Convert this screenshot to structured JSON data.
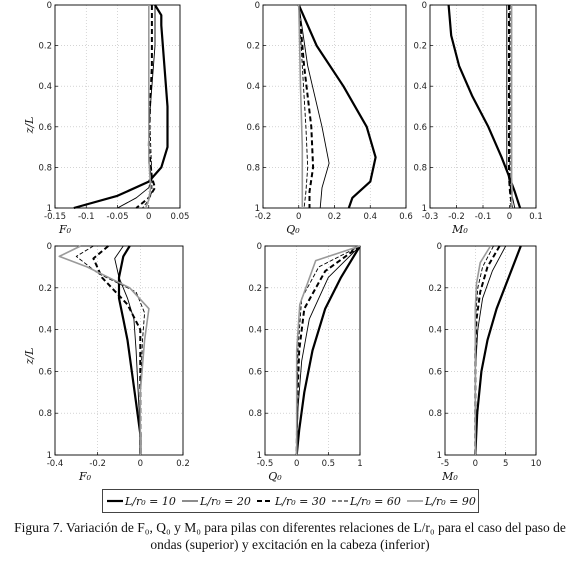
{
  "caption": {
    "line1": "Figura 7. Variación de F₀, Q₀ y M₀ para pilas con diferentes relaciones de L/r₀ para el caso del paso de",
    "line2": "ondas (superior) y excitación en la cabeza (inferior)"
  },
  "legend": [
    {
      "label": "L/r₀ = 10",
      "style": "thick-solid",
      "color": "#000000"
    },
    {
      "label": "L/r₀ = 20",
      "style": "thin-solid",
      "color": "#000000"
    },
    {
      "label": "L/r₀ = 30",
      "style": "thick-dashed",
      "color": "#000000"
    },
    {
      "label": "L/r₀ = 60",
      "style": "thin-dashed",
      "color": "#000000"
    },
    {
      "label": "L/r₀ = 90",
      "style": "gray-solid",
      "color": "#9a9a9a"
    }
  ],
  "chart_data": [
    {
      "id": "top-F0",
      "type": "line",
      "xlabel": "F₀",
      "ylabel": "z/L",
      "xlim": [
        -0.15,
        0.05
      ],
      "ylim": [
        0,
        1
      ],
      "xticks": [
        "-0.15",
        "-0.1",
        "-0.05",
        "0",
        "0.05"
      ],
      "yticks": [
        "0",
        "0.2",
        "0.4",
        "0.6",
        "0.8",
        "1"
      ],
      "series": [
        {
          "name": "L/r₀ = 10",
          "x": [
            0.01,
            0.02,
            0.02,
            0.025,
            0.03,
            0.03,
            0.02,
            0.0,
            -0.05,
            -0.12
          ],
          "y": [
            0,
            0.05,
            0.1,
            0.3,
            0.5,
            0.7,
            0.8,
            0.87,
            0.94,
            1.0
          ]
        },
        {
          "name": "L/r₀ = 20",
          "x": [
            0.01,
            0.01,
            0.005,
            0.0,
            0.0,
            0.005,
            0.0,
            -0.02,
            -0.05
          ],
          "y": [
            0,
            0.2,
            0.4,
            0.6,
            0.78,
            0.85,
            0.9,
            0.95,
            1.0
          ]
        },
        {
          "name": "L/r₀ = 30",
          "x": [
            0.005,
            0.005,
            0.002,
            0.0,
            0.005,
            0.01,
            0.0,
            -0.02
          ],
          "y": [
            0,
            0.3,
            0.5,
            0.7,
            0.85,
            0.9,
            0.95,
            1.0
          ]
        },
        {
          "name": "L/r₀ = 60",
          "x": [
            0.0,
            0.0,
            0.002,
            0.005,
            0.005,
            0.0,
            -0.01
          ],
          "y": [
            0,
            0.4,
            0.6,
            0.85,
            0.92,
            0.96,
            1.0
          ]
        },
        {
          "name": "L/r₀ = 90",
          "x": [
            0.0,
            0.0,
            0.0,
            0.003,
            0.0,
            -0.005
          ],
          "y": [
            0,
            0.5,
            0.75,
            0.9,
            0.96,
            1.0
          ]
        }
      ]
    },
    {
      "id": "top-Q0",
      "type": "line",
      "xlabel": "Q₀",
      "ylabel": "",
      "xlim": [
        -0.2,
        0.6
      ],
      "ylim": [
        0,
        1
      ],
      "xticks": [
        "-0.2",
        "0",
        "0.2",
        "0.4",
        "0.6"
      ],
      "yticks": [
        "0",
        "0.2",
        "0.4",
        "0.6",
        "0.8",
        "1"
      ],
      "series": [
        {
          "name": "L/r₀ = 10",
          "x": [
            0.0,
            0.1,
            0.25,
            0.38,
            0.43,
            0.4,
            0.3,
            0.28
          ],
          "y": [
            0,
            0.2,
            0.4,
            0.6,
            0.75,
            0.87,
            0.95,
            1.0
          ]
        },
        {
          "name": "L/r₀ = 20",
          "x": [
            0.0,
            0.05,
            0.13,
            0.17,
            0.13,
            0.12
          ],
          "y": [
            0,
            0.3,
            0.6,
            0.78,
            0.9,
            1.0
          ]
        },
        {
          "name": "L/r₀ = 30",
          "x": [
            0.0,
            0.03,
            0.07,
            0.08,
            0.06,
            0.06
          ],
          "y": [
            0,
            0.3,
            0.6,
            0.8,
            0.92,
            1.0
          ]
        },
        {
          "name": "L/r₀ = 60",
          "x": [
            0.0,
            0.02,
            0.04,
            0.05,
            0.04,
            0.03
          ],
          "y": [
            0,
            0.3,
            0.6,
            0.8,
            0.92,
            1.0
          ]
        },
        {
          "name": "L/r₀ = 90",
          "x": [
            0.0,
            0.01,
            0.02,
            0.02,
            0.02
          ],
          "y": [
            0,
            0.4,
            0.7,
            0.9,
            1.0
          ]
        }
      ]
    },
    {
      "id": "top-M0",
      "type": "line",
      "xlabel": "M₀",
      "ylabel": "",
      "xlim": [
        -0.3,
        0.1
      ],
      "ylim": [
        0,
        1
      ],
      "xticks": [
        "-0.3",
        "-0.2",
        "-0.1",
        "0",
        "0.1"
      ],
      "yticks": [
        "0",
        "0.2",
        "0.4",
        "0.6",
        "0.8",
        "1"
      ],
      "series": [
        {
          "name": "L/r₀ = 10",
          "x": [
            -0.23,
            -0.22,
            -0.19,
            -0.14,
            -0.08,
            -0.03,
            0.0,
            0.02,
            0.04
          ],
          "y": [
            0,
            0.15,
            0.3,
            0.45,
            0.6,
            0.75,
            0.85,
            0.92,
            1.0
          ]
        },
        {
          "name": "L/r₀ = 20",
          "x": [
            -0.01,
            -0.01,
            -0.01,
            0.0,
            0.01,
            0.02
          ],
          "y": [
            0,
            0.4,
            0.8,
            0.88,
            0.94,
            1.0
          ]
        },
        {
          "name": "L/r₀ = 30",
          "x": [
            -0.002,
            -0.002,
            -0.002,
            0.002,
            0.01
          ],
          "y": [
            0,
            0.5,
            0.85,
            0.92,
            1.0
          ]
        },
        {
          "name": "L/r₀ = 60",
          "x": [
            0.002,
            0.002,
            0.002,
            0.005,
            0.005
          ],
          "y": [
            0,
            0.5,
            0.85,
            0.92,
            1.0
          ]
        },
        {
          "name": "L/r₀ = 90",
          "x": [
            0.008,
            0.008,
            0.008,
            0.01,
            0.008
          ],
          "y": [
            0,
            0.5,
            0.85,
            0.92,
            1.0
          ]
        }
      ]
    },
    {
      "id": "bottom-F0",
      "type": "line",
      "xlabel": "F₀",
      "ylabel": "z/L",
      "xlim": [
        -0.4,
        0.2
      ],
      "ylim": [
        0,
        1
      ],
      "xticks": [
        "-0.4",
        "-0.2",
        "0",
        "0.2"
      ],
      "yticks": [
        "0",
        "0.2",
        "0.4",
        "0.6",
        "0.8",
        "1"
      ],
      "series": [
        {
          "name": "L/r₀ = 10",
          "x": [
            -0.05,
            -0.08,
            -0.1,
            -0.1,
            -0.08,
            -0.06,
            -0.04,
            -0.02,
            0.0,
            0.0
          ],
          "y": [
            0,
            0.05,
            0.15,
            0.25,
            0.35,
            0.45,
            0.6,
            0.75,
            0.9,
            1.0
          ]
        },
        {
          "name": "L/r₀ = 20",
          "x": [
            -0.08,
            -0.12,
            -0.1,
            -0.06,
            -0.03,
            -0.02,
            -0.01,
            0.0,
            0.0
          ],
          "y": [
            0,
            0.06,
            0.15,
            0.25,
            0.35,
            0.5,
            0.7,
            0.9,
            1.0
          ]
        },
        {
          "name": "L/r₀ = 30",
          "x": [
            -0.15,
            -0.22,
            -0.18,
            -0.06,
            0.0,
            0.0,
            0.0
          ],
          "y": [
            0,
            0.06,
            0.15,
            0.28,
            0.4,
            0.7,
            1.0
          ]
        },
        {
          "name": "L/r₀ = 60",
          "x": [
            -0.22,
            -0.3,
            -0.2,
            -0.02,
            0.02,
            0.01,
            0.0,
            0.0
          ],
          "y": [
            0,
            0.05,
            0.13,
            0.22,
            0.32,
            0.45,
            0.7,
            1.0
          ]
        },
        {
          "name": "L/r₀ = 90",
          "x": [
            -0.28,
            -0.38,
            -0.25,
            -0.05,
            0.04,
            0.02,
            0.0,
            0.0
          ],
          "y": [
            0,
            0.05,
            0.1,
            0.2,
            0.3,
            0.45,
            0.7,
            1.0
          ]
        }
      ]
    },
    {
      "id": "bottom-Q0",
      "type": "line",
      "xlabel": "Q₀",
      "ylabel": "",
      "xlim": [
        -0.5,
        1
      ],
      "ylim": [
        0,
        1
      ],
      "xticks": [
        "-0.5",
        "0",
        "0.5",
        "1"
      ],
      "yticks": [
        "0",
        "0.2",
        "0.4",
        "0.6",
        "0.8",
        "1"
      ],
      "series": [
        {
          "name": "L/r₀ = 10",
          "x": [
            1.0,
            0.7,
            0.45,
            0.25,
            0.12,
            0.04,
            0.0
          ],
          "y": [
            0,
            0.15,
            0.3,
            0.5,
            0.7,
            0.88,
            1.0
          ]
        },
        {
          "name": "L/r₀ = 20",
          "x": [
            1.0,
            0.5,
            0.2,
            0.08,
            0.02,
            0.0
          ],
          "y": [
            0,
            0.15,
            0.35,
            0.55,
            0.78,
            1.0
          ]
        },
        {
          "name": "L/r₀ = 30",
          "x": [
            1.0,
            0.45,
            0.12,
            0.04,
            0.01,
            0.0
          ],
          "y": [
            0,
            0.12,
            0.3,
            0.5,
            0.75,
            1.0
          ]
        },
        {
          "name": "L/r₀ = 60",
          "x": [
            1.0,
            0.35,
            0.08,
            0.02,
            0.0
          ],
          "y": [
            0,
            0.1,
            0.25,
            0.5,
            1.0
          ]
        },
        {
          "name": "L/r₀ = 90",
          "x": [
            1.0,
            0.3,
            0.05,
            0.0,
            0.0
          ],
          "y": [
            0,
            0.07,
            0.28,
            0.5,
            1.0
          ]
        }
      ]
    },
    {
      "id": "bottom-M0",
      "type": "line",
      "xlabel": "M₀",
      "ylabel": "",
      "xlim": [
        -5,
        10
      ],
      "ylim": [
        0,
        1
      ],
      "xticks": [
        "-5",
        "0",
        "5",
        "10"
      ],
      "yticks": [
        "0",
        "0.2",
        "0.4",
        "0.6",
        "0.8",
        "1"
      ],
      "series": [
        {
          "name": "L/r₀ = 10",
          "x": [
            7.5,
            5.5,
            3.5,
            2.0,
            1.0,
            0.3,
            0.0
          ],
          "y": [
            0,
            0.15,
            0.3,
            0.45,
            0.6,
            0.8,
            1.0
          ]
        },
        {
          "name": "L/r₀ = 20",
          "x": [
            5.0,
            2.8,
            1.2,
            0.4,
            0.0,
            0.0
          ],
          "y": [
            0,
            0.12,
            0.25,
            0.4,
            0.6,
            1.0
          ]
        },
        {
          "name": "L/r₀ = 30",
          "x": [
            4.0,
            2.0,
            0.8,
            0.2,
            0.0,
            0.0
          ],
          "y": [
            0,
            0.1,
            0.22,
            0.35,
            0.5,
            1.0
          ]
        },
        {
          "name": "L/r₀ = 60",
          "x": [
            3.0,
            1.2,
            0.4,
            0.1,
            0.0
          ],
          "y": [
            0,
            0.1,
            0.2,
            0.32,
            1.0
          ]
        },
        {
          "name": "L/r₀ = 90",
          "x": [
            2.5,
            0.8,
            0.2,
            0.0,
            0.0
          ],
          "y": [
            0,
            0.08,
            0.18,
            0.3,
            1.0
          ]
        }
      ]
    }
  ]
}
